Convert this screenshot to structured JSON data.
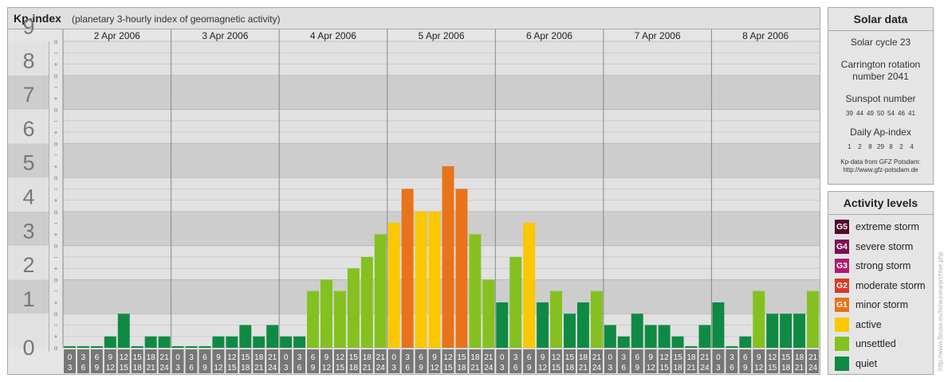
{
  "chart_data": {
    "type": "bar",
    "title": "Kp-index",
    "subtitle": "(planetary 3-hourly index of geomagnetic activity)",
    "days": [
      "2 Apr 2006",
      "3 Apr 2006",
      "4 Apr 2006",
      "5 Apr 2006",
      "6 Apr 2006",
      "7 Apr 2006",
      "8 Apr 2006"
    ],
    "hour_labels_top": [
      "0",
      "3",
      "6",
      "9",
      "12",
      "15",
      "18",
      "21"
    ],
    "hour_labels_bottom": [
      "3",
      "6",
      "9",
      "12",
      "15",
      "18",
      "21",
      "24"
    ],
    "y_ticks": [
      "0",
      "1",
      "2",
      "3",
      "4",
      "5",
      "6",
      "7",
      "8",
      "9"
    ],
    "sub_tick_labels": [
      "o",
      "+",
      "−"
    ],
    "ylim": [
      0,
      9
    ],
    "values": [
      0,
      0,
      0,
      0.333,
      1,
      0,
      0.333,
      0.333,
      0,
      0,
      0,
      0.333,
      0.333,
      0.667,
      0.333,
      0.667,
      0.333,
      0.333,
      1.667,
      2,
      1.667,
      2.333,
      2.667,
      3.333,
      3.667,
      4.667,
      4,
      4,
      5.333,
      4.667,
      3.333,
      2,
      1.333,
      2.667,
      3.667,
      1.333,
      1.667,
      1,
      1.333,
      1.667,
      0.667,
      0.333,
      1,
      0.667,
      0.667,
      0.333,
      0,
      0.667,
      1.333,
      0,
      0.333,
      1.667,
      1,
      1,
      1,
      1.667
    ],
    "grid": true
  },
  "colors": {
    "quiet": "#0f8a44",
    "unsettled": "#84c120",
    "active": "#fac800",
    "minor": "#e8731a",
    "moderate": "#d9392a",
    "strong": "#b01a6e",
    "severe": "#7c1152",
    "extreme": "#520a2e"
  },
  "solar": {
    "title": "Solar data",
    "cycle": "Solar cycle 23",
    "carrington": "Carrington rotation number 2041",
    "sunspot_label": "Sunspot number",
    "sunspot_values": [
      "39",
      "44",
      "49",
      "50",
      "54",
      "46",
      "41"
    ],
    "ap_label": "Daily Ap-index",
    "ap_values": [
      "1",
      "2",
      "8",
      "29",
      "8",
      "2",
      "4"
    ],
    "credit_line1": "Kp-data from GFZ Potsdam:",
    "credit_line2": "http://www.gfz-potsdam.de"
  },
  "activity": {
    "title": "Activity levels",
    "items": [
      {
        "code": "G5",
        "label": "extreme storm",
        "color": "#520a2e"
      },
      {
        "code": "G4",
        "label": "severe storm",
        "color": "#7c1152"
      },
      {
        "code": "G3",
        "label": "strong storm",
        "color": "#b01a6e"
      },
      {
        "code": "G2",
        "label": "moderate storm",
        "color": "#d9392a"
      },
      {
        "code": "G1",
        "label": "minor storm",
        "color": "#e8731a"
      },
      {
        "code": "",
        "label": "active",
        "color": "#fac800"
      },
      {
        "code": "",
        "label": "unsettled",
        "color": "#84c120"
      },
      {
        "code": "",
        "label": "quiet",
        "color": "#0f8a44"
      }
    ]
  },
  "watermark": "http://www.fleuse.eu/teraurora/archive.php"
}
